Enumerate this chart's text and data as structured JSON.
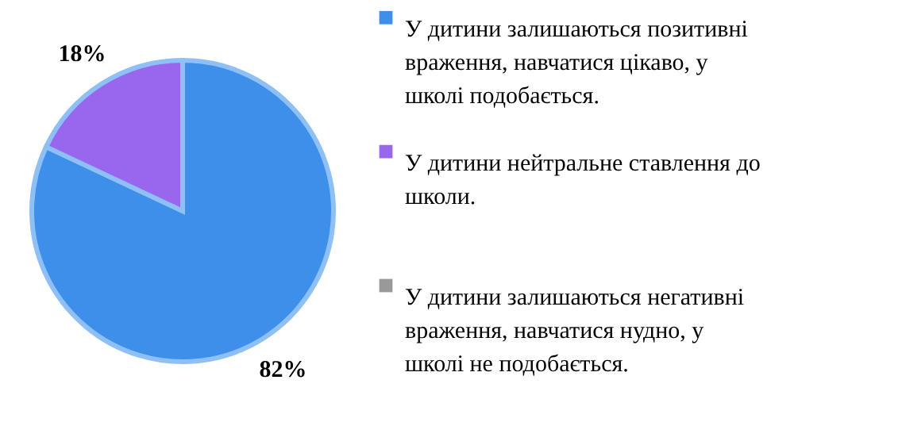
{
  "chart_data": {
    "type": "pie",
    "categories": [
      "У дитини залишаються позитивні враження, навчатися цікаво, у школі подобається.",
      "У дитини нейтральне ставлення до школи.",
      "У дитини залишаються негативні враження, навчатися нудно, у школі не подобається."
    ],
    "values": [
      82,
      18,
      0
    ],
    "colors": [
      "#3d8fea",
      "#9966ee",
      "#999999"
    ],
    "value_labels": [
      "82%",
      "18%",
      null
    ],
    "legend": "right"
  }
}
